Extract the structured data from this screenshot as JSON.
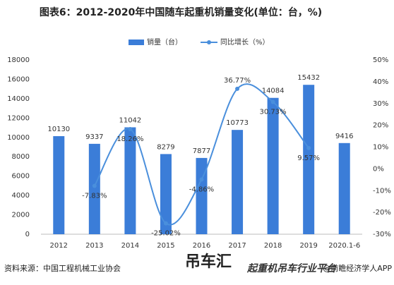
{
  "chart_data": {
    "type": "bar-line",
    "title": "图表6：2012-2020年中国随车起重机销量变化(单位：台，%)",
    "categories": [
      "2012",
      "2013",
      "2014",
      "2015",
      "2016",
      "2017",
      "2018",
      "2019",
      "2020.1-6"
    ],
    "series": [
      {
        "name": "销量（台）",
        "color": "#3b7dd8",
        "type": "bar",
        "values": [
          10130,
          9337,
          11042,
          8279,
          7877,
          10773,
          14084,
          15432,
          9416
        ]
      },
      {
        "name": "同比增长（%）",
        "color": "#4a8fdc",
        "type": "line",
        "axis": "y2",
        "values": [
          null,
          -7.83,
          18.26,
          -25.02,
          -4.86,
          36.77,
          30.73,
          9.57,
          null
        ],
        "value_labels": [
          null,
          "-7.83%",
          "18.26%",
          "-25.02%",
          "-4.86%",
          "36.77%",
          "30.73%",
          "9.57%",
          null
        ]
      }
    ],
    "ylim": [
      0,
      18000
    ],
    "yticks": [
      0,
      2000,
      4000,
      6000,
      8000,
      10000,
      12000,
      14000,
      16000,
      18000
    ],
    "y2lim": [
      -30,
      50
    ],
    "y2ticks": [
      {
        "value": -30,
        "label": "-30%"
      },
      {
        "value": -20,
        "label": "-20%"
      },
      {
        "value": -10,
        "label": "-10%"
      },
      {
        "value": 0,
        "label": "0%"
      },
      {
        "value": 10,
        "label": "10%"
      },
      {
        "value": 20,
        "label": "20%"
      },
      {
        "value": 30,
        "label": "30%"
      },
      {
        "value": 40,
        "label": "40%"
      },
      {
        "value": 50,
        "label": "50%"
      }
    ],
    "source": "资料来源：中国工程机械工业协会",
    "credit": "@前瞻经济学人APP",
    "watermark": [
      "吊车汇",
      "起重机吊车行业平台"
    ]
  }
}
